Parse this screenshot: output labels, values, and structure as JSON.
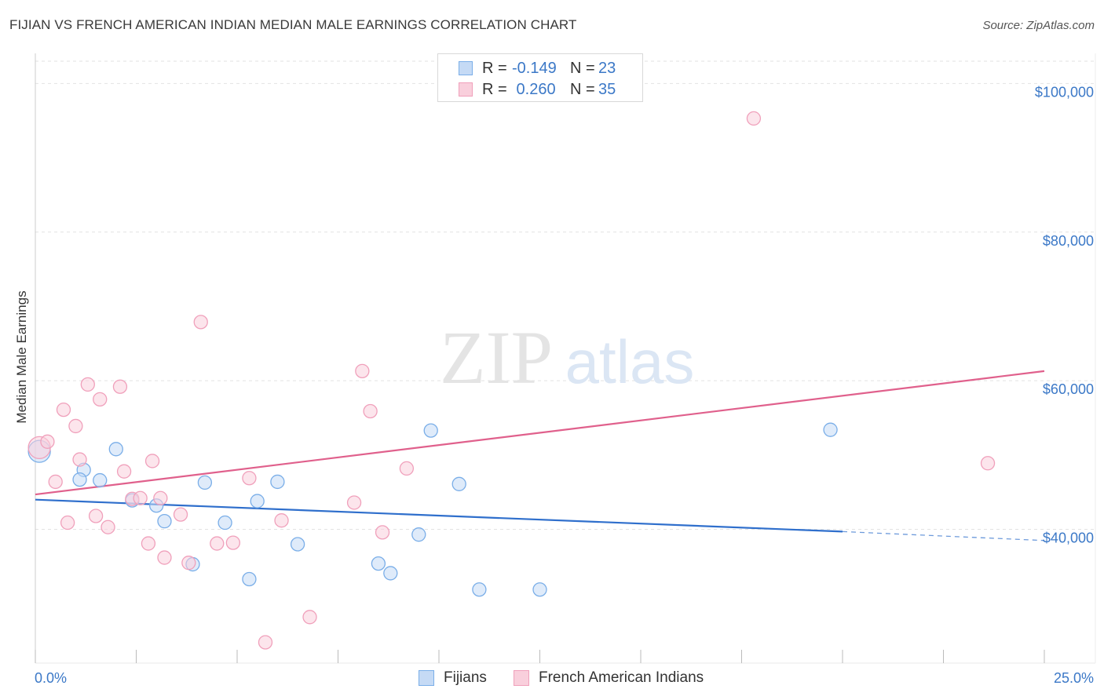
{
  "chart_data": {
    "type": "scatter",
    "title": "FIJIAN VS FRENCH AMERICAN INDIAN MEDIAN MALE EARNINGS CORRELATION CHART",
    "source": "Source: ZipAtlas.com",
    "watermark": {
      "zip": "ZIP",
      "atlas": "atlas"
    },
    "xlabel": "",
    "ylabel": "Median Male Earnings",
    "xlim": [
      0,
      25
    ],
    "ylim": [
      22000,
      103000
    ],
    "x_min_label": "0.0%",
    "x_max_label": "25.0%",
    "y_ticks": [
      40000,
      60000,
      80000,
      100000
    ],
    "y_tick_labels": [
      "$40,000",
      "$60,000",
      "$80,000",
      "$100,000"
    ],
    "x_ticks": [
      0,
      2.5,
      5,
      7.5,
      10,
      12.5,
      15,
      17.5,
      20,
      22.5,
      25
    ],
    "grid": true,
    "legend": {
      "position": "top-center",
      "rows": [
        {
          "series": "Fijians",
          "r_label": "R =",
          "r_value": "-0.149",
          "n_label": "N =",
          "n_value": "23"
        },
        {
          "series": "French American Indians",
          "r_label": "R =",
          "r_value": " 0.260",
          "n_label": "N =",
          "n_value": "35"
        }
      ]
    },
    "series": [
      {
        "name": "Fijians",
        "color": "#7aaee8",
        "fill": "#c5daf5",
        "trend": {
          "x0": 0,
          "y0": 44000,
          "x1": 20,
          "y1": 39700,
          "dash_x1": 25,
          "dash_y1": 38500,
          "color": "#2f6fcc"
        },
        "points": [
          {
            "x": 0.1,
            "y": 50500,
            "big": true
          },
          {
            "x": 1.2,
            "y": 48000
          },
          {
            "x": 1.1,
            "y": 46700
          },
          {
            "x": 1.6,
            "y": 46600
          },
          {
            "x": 2.0,
            "y": 50800
          },
          {
            "x": 2.4,
            "y": 43900
          },
          {
            "x": 3.0,
            "y": 43200
          },
          {
            "x": 3.2,
            "y": 41100
          },
          {
            "x": 3.9,
            "y": 35300
          },
          {
            "x": 4.2,
            "y": 46300
          },
          {
            "x": 4.7,
            "y": 40900
          },
          {
            "x": 5.3,
            "y": 33300
          },
          {
            "x": 5.5,
            "y": 43800
          },
          {
            "x": 6.0,
            "y": 46400
          },
          {
            "x": 6.5,
            "y": 38000
          },
          {
            "x": 8.5,
            "y": 35400
          },
          {
            "x": 8.8,
            "y": 34100
          },
          {
            "x": 9.5,
            "y": 39300
          },
          {
            "x": 9.8,
            "y": 53300
          },
          {
            "x": 10.5,
            "y": 46100
          },
          {
            "x": 11.0,
            "y": 31900
          },
          {
            "x": 12.5,
            "y": 31900
          },
          {
            "x": 19.7,
            "y": 53400
          }
        ]
      },
      {
        "name": "French American Indians",
        "color": "#f0a0bb",
        "fill": "#f9cfdc",
        "trend": {
          "x0": 0,
          "y0": 44700,
          "x1": 25,
          "y1": 61300,
          "color": "#e0608c"
        },
        "points": [
          {
            "x": 0.1,
            "y": 51000,
            "big": true
          },
          {
            "x": 0.3,
            "y": 51800
          },
          {
            "x": 0.5,
            "y": 46400
          },
          {
            "x": 0.7,
            "y": 56100
          },
          {
            "x": 0.8,
            "y": 40900
          },
          {
            "x": 1.0,
            "y": 53900
          },
          {
            "x": 1.1,
            "y": 49400
          },
          {
            "x": 1.3,
            "y": 59500
          },
          {
            "x": 1.5,
            "y": 41800
          },
          {
            "x": 1.6,
            "y": 57500
          },
          {
            "x": 1.8,
            "y": 40300
          },
          {
            "x": 2.1,
            "y": 59200
          },
          {
            "x": 2.2,
            "y": 47800
          },
          {
            "x": 2.4,
            "y": 44100
          },
          {
            "x": 2.6,
            "y": 44200
          },
          {
            "x": 2.8,
            "y": 38100
          },
          {
            "x": 2.9,
            "y": 49200
          },
          {
            "x": 3.1,
            "y": 44200
          },
          {
            "x": 3.2,
            "y": 36200
          },
          {
            "x": 3.6,
            "y": 42000
          },
          {
            "x": 3.8,
            "y": 35500
          },
          {
            "x": 4.1,
            "y": 67900
          },
          {
            "x": 4.5,
            "y": 38100
          },
          {
            "x": 4.9,
            "y": 38200
          },
          {
            "x": 5.3,
            "y": 46900
          },
          {
            "x": 5.7,
            "y": 24800
          },
          {
            "x": 6.1,
            "y": 41200
          },
          {
            "x": 6.8,
            "y": 28200
          },
          {
            "x": 7.9,
            "y": 43600
          },
          {
            "x": 8.1,
            "y": 61300
          },
          {
            "x": 8.3,
            "y": 55900
          },
          {
            "x": 8.6,
            "y": 39600
          },
          {
            "x": 9.2,
            "y": 48200
          },
          {
            "x": 17.8,
            "y": 95300
          },
          {
            "x": 23.6,
            "y": 48900
          }
        ]
      }
    ]
  }
}
